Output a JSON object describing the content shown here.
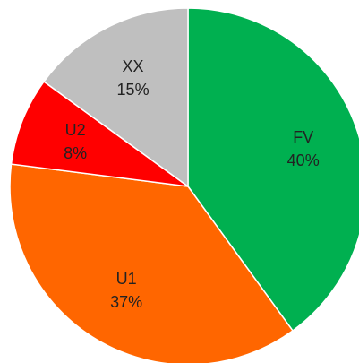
{
  "chart_data": {
    "type": "pie",
    "categories": [
      "FV",
      "U1",
      "U2",
      "XX"
    ],
    "values": [
      40,
      37,
      8,
      15
    ],
    "value_labels": [
      "40%",
      "37%",
      "8%",
      "15%"
    ],
    "colors": [
      "#00b050",
      "#ff6600",
      "#ff0000",
      "#bfbfbf"
    ]
  }
}
